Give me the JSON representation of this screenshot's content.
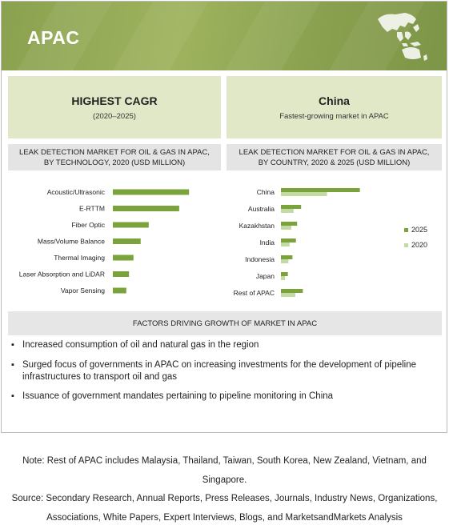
{
  "banner": {
    "title": "APAC"
  },
  "highest_cagr": {
    "title": "HIGHEST CAGR",
    "subtitle": "(2020–2025)"
  },
  "china_card": {
    "title": "China",
    "subtitle": "Fastest-growing market in APAC"
  },
  "left_chart_header": {
    "line1": "LEAK DETECTION MARKET FOR OIL & GAS IN APAC,",
    "line2": "BY TECHNOLOGY, 2020 (USD MILLION)"
  },
  "right_chart_header": {
    "line1": "LEAK DETECTION MARKET FOR OIL & GAS IN APAC,",
    "line2": "BY COUNTRY, 2020 & 2025 (USD MILLION)"
  },
  "factors": {
    "title": "FACTORS DRIVING GROWTH OF MARKET IN APAC"
  },
  "bullets": [
    "Increased consumption of oil and natural gas in the region",
    "Surged focus of governments in APAC on increasing investments for the development of pipeline infrastructures to transport oil and gas",
    "Issuance of government mandates pertaining to pipeline monitoring in China"
  ],
  "note": {
    "line1": "Note: Rest of APAC includes Malaysia, Thailand, Taiwan, South Korea, New Zealand, Vietnam, and",
    "line2": "Singapore.",
    "source1": "Source: Secondary Research, Annual Reports, Press Releases, Journals, Industry News, Organizations,",
    "source2": "Associations, White Papers, Expert Interviews, Blogs, and MarketsandMarkets Analysis"
  },
  "colors": {
    "bar_2025": "#7aa33c",
    "bar_2020": "#c3dba3",
    "tech_bar": "#7aa33c",
    "banner": "#8aa14f"
  },
  "chart_data": [
    {
      "type": "bar",
      "orientation": "horizontal",
      "categories": [
        "Acoustic/Ultrasonic",
        "E-RTTM",
        "Fiber Optic",
        "Mass/Volume Balance",
        "Thermal Imaging",
        "Laser Absorption and LiDAR",
        "Vapor Sensing"
      ],
      "values": [
        85,
        74,
        40,
        31,
        23,
        18,
        15
      ],
      "xlim": [
        0,
        100
      ]
    },
    {
      "type": "bar",
      "orientation": "horizontal",
      "categories": [
        "China",
        "Australia",
        "Kazakhstan",
        "India",
        "Indonesia",
        "Japan",
        "Rest of APAC"
      ],
      "series": [
        {
          "name": "2025",
          "values": [
            137,
            35,
            28,
            26,
            20,
            12,
            38
          ]
        },
        {
          "name": "2020",
          "values": [
            80,
            22,
            18,
            15,
            13,
            7,
            25
          ]
        }
      ],
      "xlim": [
        0,
        200
      ],
      "legend": "right"
    }
  ]
}
